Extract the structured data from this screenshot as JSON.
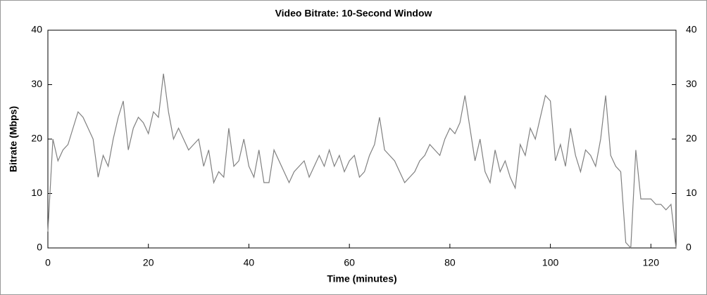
{
  "chart_data": {
    "type": "line",
    "title": "Video Bitrate: 10-Second Window",
    "xlabel": "Time (minutes)",
    "ylabel": "Bitrate (Mbps)",
    "x": [
      0,
      1,
      2,
      3,
      4,
      5,
      6,
      7,
      8,
      9,
      10,
      11,
      12,
      13,
      14,
      15,
      16,
      17,
      18,
      19,
      20,
      21,
      22,
      23,
      24,
      25,
      26,
      27,
      28,
      29,
      30,
      31,
      32,
      33,
      34,
      35,
      36,
      37,
      38,
      39,
      40,
      41,
      42,
      43,
      44,
      45,
      46,
      47,
      48,
      49,
      50,
      51,
      52,
      53,
      54,
      55,
      56,
      57,
      58,
      59,
      60,
      61,
      62,
      63,
      64,
      65,
      66,
      67,
      68,
      69,
      70,
      71,
      72,
      73,
      74,
      75,
      76,
      77,
      78,
      79,
      80,
      81,
      82,
      83,
      84,
      85,
      86,
      87,
      88,
      89,
      90,
      91,
      92,
      93,
      94,
      95,
      96,
      97,
      98,
      99,
      100,
      101,
      102,
      103,
      104,
      105,
      106,
      107,
      108,
      109,
      110,
      111,
      112,
      113,
      114,
      115,
      116,
      117,
      118,
      119,
      120,
      121,
      122,
      123,
      124,
      125
    ],
    "values": [
      3,
      20,
      16,
      18,
      19,
      22,
      25,
      24,
      22,
      20,
      13,
      17,
      15,
      20,
      24,
      27,
      18,
      22,
      24,
      23,
      21,
      25,
      24,
      32,
      25,
      20,
      22,
      20,
      18,
      19,
      20,
      15,
      18,
      12,
      14,
      13,
      22,
      15,
      16,
      20,
      15,
      13,
      18,
      12,
      12,
      18,
      16,
      14,
      12,
      14,
      15,
      16,
      13,
      15,
      17,
      15,
      18,
      15,
      17,
      14,
      16,
      17,
      13,
      14,
      17,
      19,
      24,
      18,
      17,
      16,
      14,
      12,
      13,
      14,
      16,
      17,
      19,
      18,
      17,
      20,
      22,
      21,
      23,
      28,
      22,
      16,
      20,
      14,
      12,
      18,
      14,
      16,
      13,
      11,
      19,
      17,
      22,
      20,
      24,
      28,
      27,
      16,
      19,
      15,
      22,
      17,
      14,
      18,
      17,
      15,
      20,
      28,
      17,
      15,
      14,
      1,
      0,
      18,
      9,
      9,
      9,
      8,
      8,
      7,
      8,
      0
    ],
    "color": "#808080",
    "xlim": [
      0,
      125
    ],
    "xticks": [
      0,
      20,
      40,
      60,
      80,
      100,
      120
    ],
    "ylim": [
      0,
      40
    ],
    "yticks": [
      0,
      10,
      20,
      30,
      40
    ],
    "y2lim": [
      0,
      40
    ],
    "y2ticks": [
      0,
      10,
      20,
      30,
      40
    ]
  }
}
